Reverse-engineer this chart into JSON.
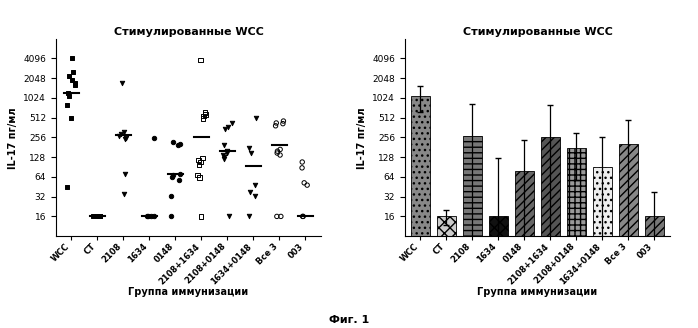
{
  "title": "Стимулированные WCC",
  "xlabel": "Группа иммунизации",
  "ylabel": "IL-17 пг/мл",
  "fig_label": "Фиг. 1",
  "categories": [
    "WCC",
    "CT",
    "2108",
    "1634",
    "0148",
    "2108+1634",
    "2108+0148",
    "1634+0148",
    "Все 3",
    "003"
  ],
  "ylim_log": [
    8,
    8000
  ],
  "yticks": [
    16,
    32,
    64,
    128,
    256,
    512,
    1024,
    2048,
    4096
  ],
  "scatter_data": {
    "WCC": [
      4096,
      2500,
      2200,
      1900,
      1750,
      1600,
      1200,
      1100,
      800,
      500,
      45
    ],
    "CT": [
      16,
      16,
      16,
      16,
      16
    ],
    "2108": [
      1700,
      310,
      290,
      270,
      255,
      245,
      70,
      35
    ],
    "1634": [
      255,
      16,
      16,
      16,
      16
    ],
    "0148": [
      215,
      205,
      195,
      72,
      68,
      63,
      58,
      33,
      16
    ],
    "2108+1634": [
      3900,
      610,
      570,
      545,
      495,
      125,
      115,
      108,
      98,
      68,
      63,
      16
    ],
    "2108+0148": [
      420,
      370,
      345,
      195,
      158,
      148,
      138,
      128,
      118,
      16
    ],
    "1634+0148": [
      505,
      175,
      148,
      48,
      38,
      33,
      16
    ],
    "Все 3": [
      455,
      425,
      415,
      385,
      168,
      158,
      148,
      138,
      16,
      16
    ],
    "003": [
      108,
      88,
      52,
      48,
      16,
      16
    ]
  },
  "scatter_medians": {
    "WCC": 1200,
    "CT": 16,
    "2108": 280,
    "1634": 16,
    "0148": 72,
    "2108+1634": 260,
    "2108+0148": 160,
    "1634+0148": 95,
    "Все 3": 195,
    "003": 16
  },
  "scatter_markers": [
    "s",
    "s",
    "v",
    "o",
    "o",
    "s",
    "v",
    "v",
    "o",
    "o"
  ],
  "scatter_filled": [
    true,
    true,
    true,
    true,
    true,
    false,
    true,
    true,
    false,
    false
  ],
  "bar_heights": [
    1100,
    16,
    270,
    16,
    78,
    258,
    178,
    92,
    205,
    16
  ],
  "bar_errors": [
    480,
    4,
    560,
    108,
    155,
    545,
    120,
    165,
    265,
    22
  ],
  "bar_styles": [
    {
      "facecolor": "#888888",
      "hatch": "...",
      "edgecolor": "black"
    },
    {
      "facecolor": "#cccccc",
      "hatch": "xxx",
      "edgecolor": "black"
    },
    {
      "facecolor": "#777777",
      "hatch": "---",
      "edgecolor": "black"
    },
    {
      "facecolor": "#111111",
      "hatch": "xxx",
      "edgecolor": "black"
    },
    {
      "facecolor": "#666666",
      "hatch": "////",
      "edgecolor": "black"
    },
    {
      "facecolor": "#555555",
      "hatch": "////",
      "edgecolor": "black"
    },
    {
      "facecolor": "#999999",
      "hatch": "+++",
      "edgecolor": "black"
    },
    {
      "facecolor": "#eeeeee",
      "hatch": "...",
      "edgecolor": "black"
    },
    {
      "facecolor": "#888888",
      "hatch": "////",
      "edgecolor": "black"
    },
    {
      "facecolor": "#777777",
      "hatch": "////",
      "edgecolor": "black"
    }
  ]
}
